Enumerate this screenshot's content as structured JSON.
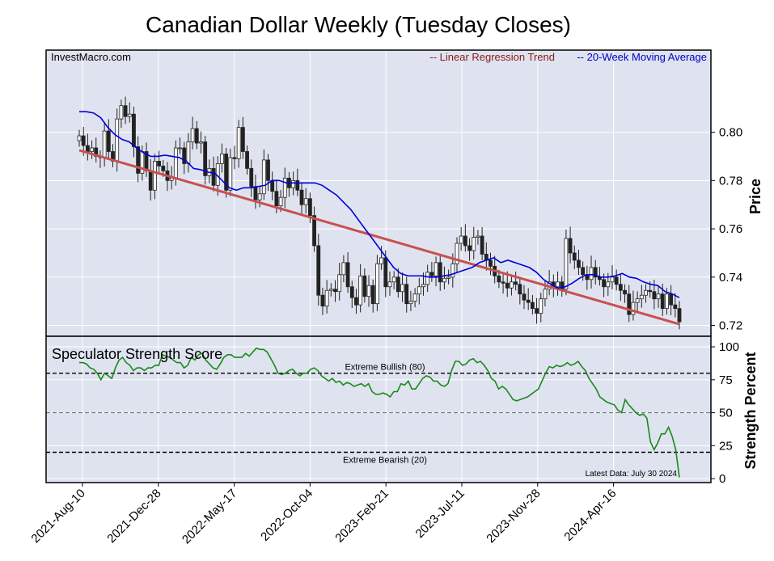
{
  "title": "Canadian Dollar Weekly (Tuesday Closes)",
  "watermark": "InvestMacro.com",
  "legend": {
    "trend": "-- Linear Regression Trend",
    "ma": "-- 20-Week Moving Average"
  },
  "colors": {
    "background": "#dfe3ef",
    "grid": "#ffffff",
    "moving_average": "#0000dd",
    "regression": "#c85050",
    "trend_legend_text": "#8b1a1a",
    "strength_line": "#1a8a1a",
    "candle_up": "#ffffff",
    "candle_down": "#222222"
  },
  "x_axis": {
    "ticks": [
      "2021-Aug-10",
      "2021-Dec-28",
      "2022-May-17",
      "2022-Oct-04",
      "2023-Feb-21",
      "2023-Jul-11",
      "2023-Nov-28",
      "2024-Apr-16"
    ]
  },
  "price_panel": {
    "ylabel": "Price",
    "ticks": [
      "0.80",
      "0.78",
      "0.76",
      "0.74",
      "0.72"
    ]
  },
  "strength_panel": {
    "title": "Speculator Strength Score",
    "ylabel": "Strength Percent",
    "ticks": [
      "100",
      "75",
      "50",
      "25",
      "0"
    ],
    "bullish_label": "Extreme Bullish (80)",
    "bearish_label": "Extreme Bearish (20)",
    "latest": "Latest Data: July 30 2024"
  },
  "chart_data": [
    {
      "type": "line",
      "title": "Canadian Dollar Weekly (Tuesday Closes)",
      "ylabel": "Price",
      "ylim": [
        0.7155,
        0.834
      ],
      "grid": true,
      "legend_position": "top-right",
      "x_start": "2021-08-10",
      "x_end": "2024-07-30",
      "candle_closes": [
        0.7985,
        0.7945,
        0.792,
        0.7935,
        0.79,
        0.7895,
        0.8005,
        0.792,
        0.788,
        0.8055,
        0.811,
        0.8065,
        0.8075,
        0.794,
        0.783,
        0.792,
        0.784,
        0.776,
        0.788,
        0.786,
        0.784,
        0.78,
        0.781,
        0.7935,
        0.7935,
        0.787,
        0.796,
        0.8015,
        0.7955,
        0.796,
        0.782,
        0.785,
        0.778,
        0.787,
        0.791,
        0.776,
        0.7895,
        0.789,
        0.802,
        0.792,
        0.785,
        0.7775,
        0.772,
        0.7745,
        0.7885,
        0.78,
        0.7755,
        0.7695,
        0.773,
        0.781,
        0.777,
        0.78,
        0.776,
        0.77,
        0.7725,
        0.7655,
        0.753,
        0.7325,
        0.728,
        0.7345,
        0.735,
        0.734,
        0.741,
        0.746,
        0.736,
        0.7315,
        0.7285,
        0.7405,
        0.732,
        0.7365,
        0.729,
        0.7455,
        0.748,
        0.736,
        0.738,
        0.74,
        0.734,
        0.737,
        0.729,
        0.73,
        0.733,
        0.736,
        0.737,
        0.742,
        0.7405,
        0.746,
        0.738,
        0.7395,
        0.74,
        0.7455,
        0.754,
        0.757,
        0.753,
        0.751,
        0.7565,
        0.757,
        0.7495,
        0.747,
        0.7445,
        0.7405,
        0.738,
        0.7375,
        0.7355,
        0.738,
        0.737,
        0.733,
        0.7305,
        0.7295,
        0.727,
        0.725,
        0.731,
        0.735,
        0.738,
        0.736,
        0.738,
        0.735,
        0.756,
        0.75,
        0.747,
        0.744,
        0.741,
        0.739,
        0.744,
        0.74,
        0.739,
        0.736,
        0.738,
        0.74,
        0.737,
        0.7345,
        0.733,
        0.7245,
        0.7295,
        0.731,
        0.7325,
        0.7345,
        0.734,
        0.731,
        0.733,
        0.727,
        0.733,
        0.7285,
        0.727,
        0.7215
      ],
      "moving_average": {
        "name": "20-Week Moving Average",
        "values": [
          0.8085,
          0.8085,
          0.808,
          0.806,
          0.802,
          0.799,
          0.797,
          0.796,
          0.7935,
          0.7915,
          0.79,
          0.79,
          0.7905,
          0.79,
          0.7895,
          0.788,
          0.785,
          0.7845,
          0.7835,
          0.783,
          0.78,
          0.777,
          0.776,
          0.777,
          0.777,
          0.7775,
          0.778,
          0.78,
          0.78,
          0.779,
          0.779,
          0.779,
          0.779,
          0.779,
          0.778,
          0.776,
          0.774,
          0.771,
          0.768,
          0.764,
          0.76,
          0.756,
          0.752,
          0.748,
          0.744,
          0.7415,
          0.7405,
          0.7405,
          0.7405,
          0.74,
          0.74,
          0.7405,
          0.741,
          0.742,
          0.743,
          0.744,
          0.746,
          0.747,
          0.748,
          0.746,
          0.747,
          0.746,
          0.745,
          0.744,
          0.742,
          0.739,
          0.737,
          0.7355,
          0.736,
          0.7375,
          0.7395,
          0.741,
          0.741,
          0.74,
          0.74,
          0.7405,
          0.7415,
          0.74,
          0.7395,
          0.738,
          0.737,
          0.7365,
          0.734,
          0.733,
          0.7315
        ]
      },
      "regression": {
        "name": "Linear Regression Trend",
        "start": 0.7925,
        "end": 0.7205
      }
    },
    {
      "type": "line",
      "title": "Speculator Strength Score",
      "ylabel": "Strength Percent",
      "ylim": [
        -3,
        108
      ],
      "reference_lines": [
        {
          "label": "Extreme Bullish (80)",
          "value": 80
        },
        {
          "value": 50
        },
        {
          "label": "Extreme Bearish (20)",
          "value": 20
        }
      ],
      "series": [
        {
          "values": [
            88,
            88,
            87,
            84,
            83,
            80,
            75,
            80,
            78,
            76,
            84,
            90,
            92,
            88,
            86,
            82,
            84,
            84,
            82,
            84,
            84,
            86,
            86,
            94,
            93,
            92,
            90,
            88,
            88,
            84,
            86,
            92,
            90,
            94,
            95,
            90,
            87,
            84,
            83,
            87,
            92,
            94,
            94,
            92,
            92,
            92,
            95,
            93,
            96,
            99,
            98,
            98,
            96,
            91,
            86,
            80,
            79,
            80,
            82,
            83,
            80,
            78,
            80,
            80,
            83,
            84,
            82,
            78,
            76,
            74,
            76,
            73,
            74,
            71,
            73,
            72,
            70,
            71,
            72,
            70,
            72,
            66,
            64,
            64,
            65,
            64,
            62,
            66,
            66,
            72,
            71,
            74,
            68,
            68,
            72,
            76,
            78,
            77,
            74,
            74,
            71,
            70,
            72,
            82,
            89,
            89,
            86,
            87,
            90,
            91,
            88,
            89,
            86,
            82,
            76,
            74,
            68,
            70,
            68,
            64,
            60,
            59,
            60,
            61,
            62,
            64,
            66,
            68,
            74,
            80,
            85,
            84,
            86,
            85,
            86,
            88,
            86,
            87,
            89,
            85,
            82,
            76,
            72,
            68,
            62,
            60,
            58,
            57,
            56,
            52,
            50,
            60,
            56,
            53,
            50,
            48,
            49,
            46,
            28,
            22,
            27,
            34,
            34,
            39,
            32,
            22,
            1
          ]
        }
      ]
    }
  ]
}
